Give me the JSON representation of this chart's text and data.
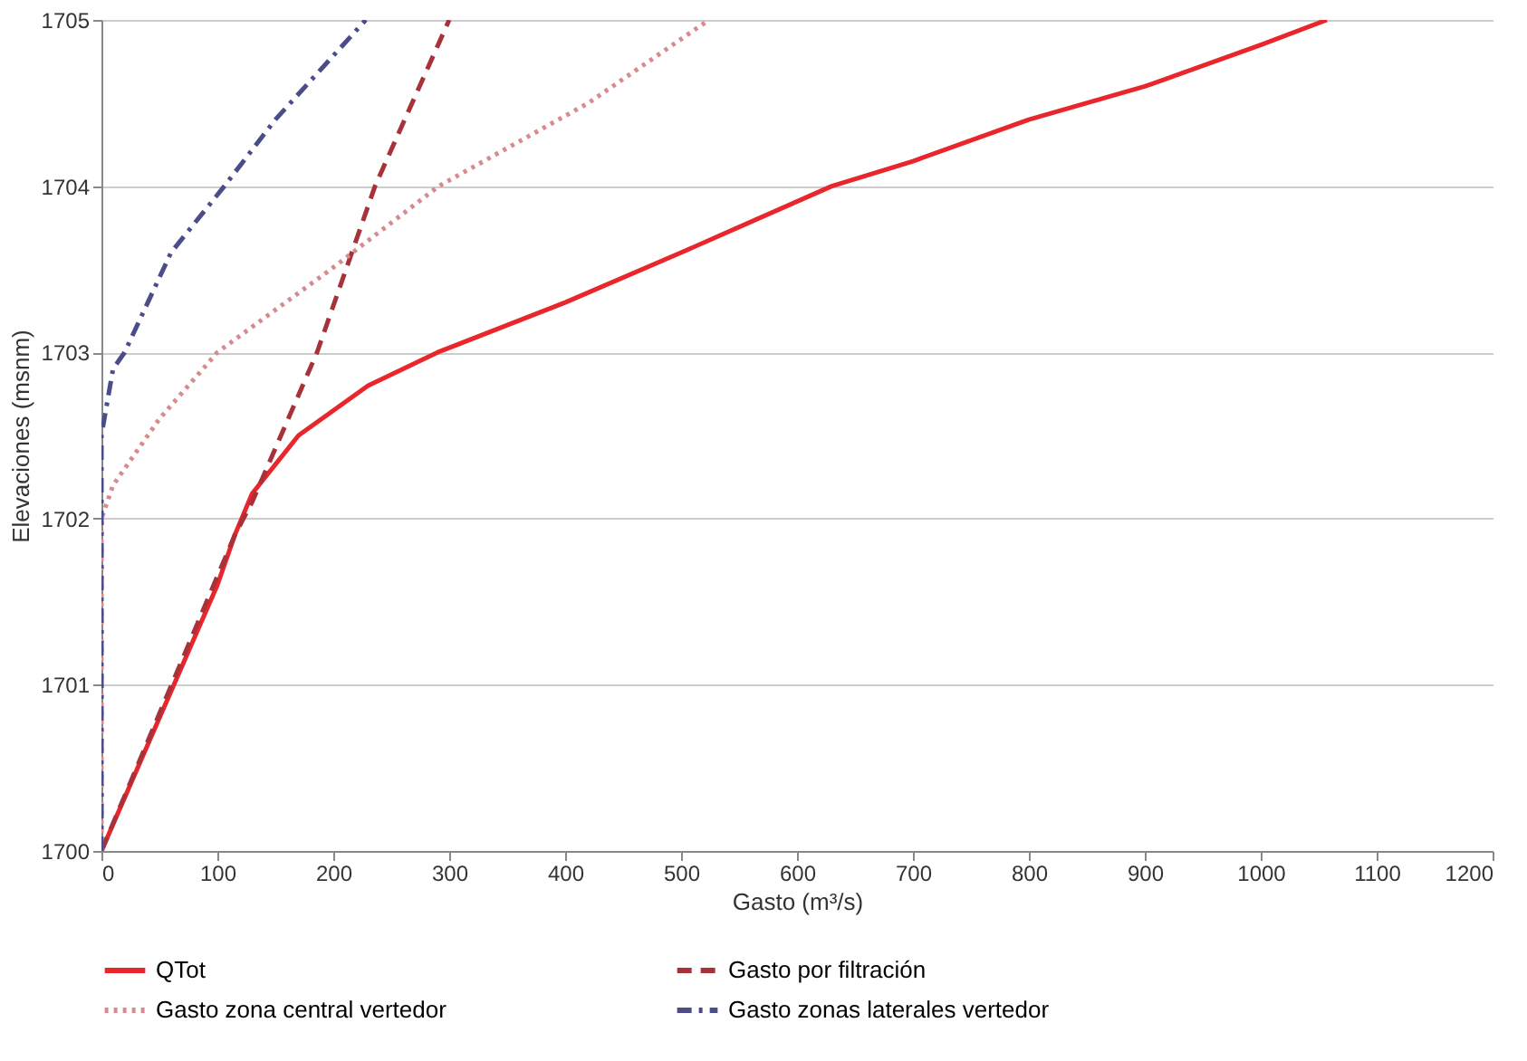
{
  "chart_data": {
    "type": "line",
    "xlabel": "Gasto (m³/s)",
    "ylabel": "Elevaciones (msnm)",
    "xlim": [
      0,
      1200
    ],
    "xticks": [
      0,
      100,
      200,
      300,
      400,
      500,
      600,
      700,
      800,
      900,
      1000,
      1100,
      1200
    ],
    "ylim": [
      1700,
      1705
    ],
    "yticks": [
      1700,
      1701,
      1702,
      1703,
      1704,
      1705
    ],
    "grid": "y",
    "legend": "bottom",
    "series": [
      {
        "name": "QTot",
        "color": "#e8262b",
        "line_style": "solid",
        "x": [
          0,
          50,
          100,
          115,
          130,
          170,
          230,
          290,
          400,
          500,
          630,
          700,
          800,
          900,
          1000,
          1057
        ],
        "values": [
          1700,
          1700.8,
          1701.6,
          1701.9,
          1702.15,
          1702.5,
          1702.8,
          1703,
          1703.3,
          1703.6,
          1704,
          1704.15,
          1704.4,
          1704.6,
          1704.85,
          1705
        ]
      },
      {
        "name": "Gasto por filtración",
        "color": "#a8323a",
        "line_style": "dashed",
        "x": [
          0,
          115,
          130,
          186,
          236,
          300
        ],
        "values": [
          1700,
          1701.9,
          1702.1,
          1703,
          1704,
          1705
        ]
      },
      {
        "name": "Gasto zona central vertedor",
        "color": "#d98a8f",
        "line_style": "dotted",
        "x": [
          0,
          0,
          10,
          50,
          100,
          198,
          291,
          420,
          524
        ],
        "values": [
          1700,
          1702,
          1702.2,
          1702.6,
          1703,
          1703.5,
          1704,
          1704.5,
          1705
        ]
      },
      {
        "name": "Gasto zonas laterales vertedor",
        "color": "#4b4d8a",
        "line_style": "dashdot",
        "x": [
          0,
          0,
          10,
          20,
          60,
          106,
          150,
          228
        ],
        "values": [
          1700,
          1702.5,
          1702.9,
          1703,
          1703.6,
          1704,
          1704.4,
          1705
        ]
      }
    ]
  }
}
